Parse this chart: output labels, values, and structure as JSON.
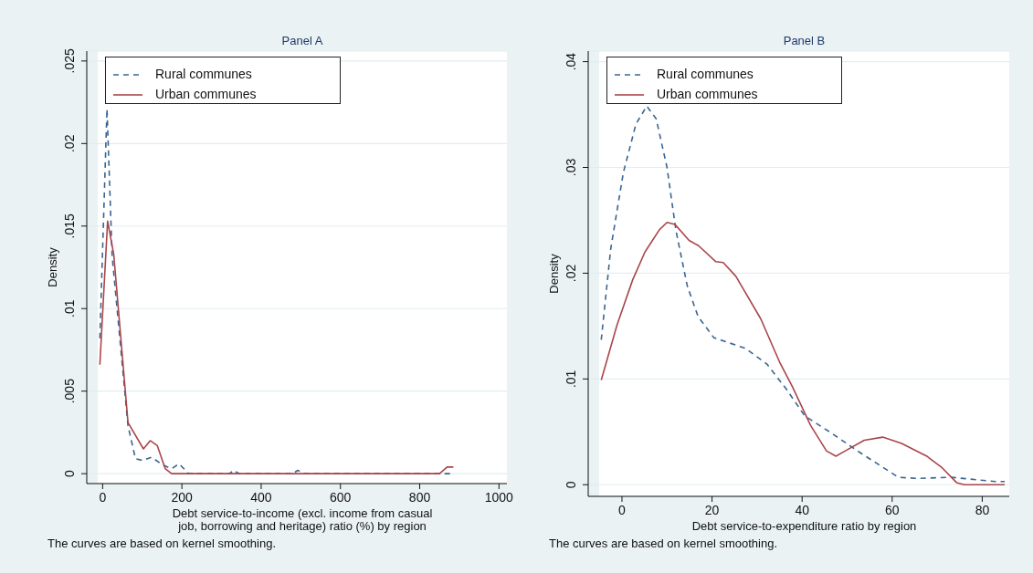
{
  "chart_data": [
    {
      "type": "line",
      "title": "Panel A",
      "xlabel": "Debt service-to-income (excl. income from casual job, borrowing and heritage) ratio (%) by region",
      "ylabel": "Density",
      "annotations": [
        "The curves are based on kernel smoothing."
      ],
      "xlim": [
        -40,
        1020
      ],
      "xticks": [
        0,
        200,
        400,
        600,
        800,
        1000
      ],
      "ylim": [
        -0.0006,
        0.0256
      ],
      "yticks": [
        {
          "value": 0,
          "label": "0"
        },
        {
          "value": 0.005,
          "label": ".005"
        },
        {
          "value": 0.01,
          "label": ".01"
        },
        {
          "value": 0.015,
          "label": ".015"
        },
        {
          "value": 0.02,
          "label": ".02"
        },
        {
          "value": 0.025,
          "label": ".025"
        }
      ],
      "grid": "y",
      "legend": "top left",
      "marker": "none",
      "series": [
        {
          "name": "Rural communes",
          "color": "#3a6591",
          "line_style": "dashed",
          "x": [
            -7,
            11,
            24,
            64,
            83,
            102,
            123,
            154,
            174,
            193,
            217,
            320,
            330,
            345,
            480,
            492,
            512,
            877
          ],
          "values": [
            0.0082,
            0.0221,
            0.0132,
            0.0029,
            0.0009,
            0.0008,
            0.001,
            0.0005,
            0.0003,
            0.0006,
            0,
            0,
            0.0002,
            0,
            0,
            0.0002,
            0,
            0
          ]
        },
        {
          "name": "Urban communes",
          "color": "#a8464c",
          "line_style": "solid",
          "x": [
            -7,
            12.6,
            28,
            64,
            103,
            120,
            138,
            158,
            174,
            850,
            869,
            885
          ],
          "values": [
            0.0066,
            0.0153,
            0.0133,
            0.0031,
            0.0015,
            0.002,
            0.0017,
            0.0003,
            0,
            0,
            0.0004,
            0.0004
          ]
        }
      ]
    },
    {
      "type": "line",
      "title": "Panel B",
      "xlabel": "Debt service-to-expenditure ratio by region",
      "ylabel": "Density",
      "annotations": [
        "The curves are based on kernel smoothing."
      ],
      "xlim": [
        -7.5,
        86
      ],
      "xticks": [
        0,
        20,
        40,
        60,
        80
      ],
      "ylim": [
        -0.0011,
        0.041
      ],
      "yticks": [
        {
          "value": 0,
          "label": "0"
        },
        {
          "value": 0.01,
          "label": ".01"
        },
        {
          "value": 0.02,
          "label": ".02"
        },
        {
          "value": 0.03,
          "label": ".03"
        },
        {
          "value": 0.04,
          "label": ".04"
        }
      ],
      "grid": "y",
      "legend": "top left",
      "marker": "none",
      "series": [
        {
          "name": "Rural communes",
          "color": "#3a6591",
          "line_style": "dashed",
          "x": [
            -4.6,
            -2.5,
            0.3,
            3.1,
            5.5,
            7.6,
            10,
            12,
            14.5,
            16.9,
            20.4,
            27.4,
            32.2,
            36.4,
            40.6,
            46.1,
            53,
            61.4,
            65.6,
            73.2,
            82.9,
            85
          ],
          "values": [
            0.0137,
            0.0223,
            0.0295,
            0.0341,
            0.0358,
            0.0346,
            0.03,
            0.024,
            0.0188,
            0.0159,
            0.0139,
            0.0129,
            0.0114,
            0.0091,
            0.0065,
            0.005,
            0.003,
            0.0007,
            0.0006,
            0.0007,
            0.0003,
            0.0003
          ]
        },
        {
          "name": "Urban communes",
          "color": "#a8464c",
          "line_style": "solid",
          "x": [
            -4.6,
            -1.1,
            2.4,
            5.1,
            8.3,
            10,
            11.8,
            14.9,
            17,
            20.8,
            22.5,
            25.3,
            30.8,
            35,
            37.8,
            41.9,
            45.4,
            47.5,
            49.6,
            53.8,
            57.9,
            62.1,
            67.7,
            71.1,
            74.3,
            76,
            85
          ],
          "values": [
            0.0099,
            0.0151,
            0.0194,
            0.022,
            0.0241,
            0.0248,
            0.0246,
            0.0231,
            0.0226,
            0.0211,
            0.021,
            0.0197,
            0.0157,
            0.0116,
            0.0093,
            0.0056,
            0.0032,
            0.0027,
            0.0032,
            0.0042,
            0.0045,
            0.0039,
            0.0027,
            0.0016,
            0.0002,
            0,
            0
          ]
        }
      ]
    }
  ]
}
